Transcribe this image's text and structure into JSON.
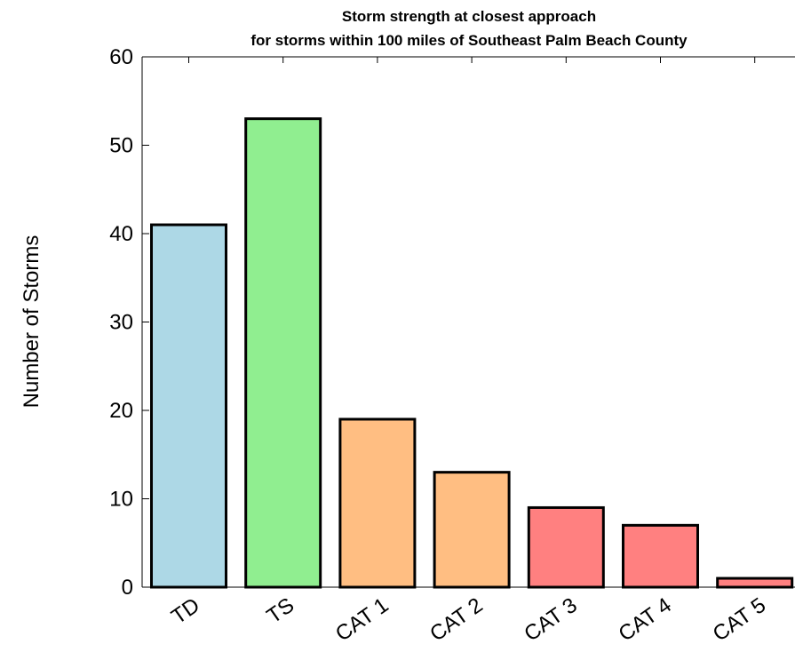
{
  "chart_data": {
    "type": "bar",
    "title": "Storm strength at closest approach",
    "subtitle": "for storms within 100 miles of Southeast Palm Beach County",
    "xlabel": "",
    "ylabel": "Number of Storms",
    "categories": [
      "TD",
      "TS",
      "CAT 1",
      "CAT 2",
      "CAT 3",
      "CAT 4",
      "CAT 5"
    ],
    "values": [
      41,
      53,
      19,
      13,
      9,
      7,
      1
    ],
    "colors": [
      "#add8e6",
      "#90ee90",
      "#ffbe82",
      "#ffbe82",
      "#ff8080",
      "#ff8080",
      "#ff8080"
    ],
    "ylim": [
      0,
      60
    ],
    "yticks": [
      "0",
      "10",
      "20",
      "30",
      "40",
      "50",
      "60"
    ],
    "grid": false,
    "legend": "none"
  }
}
